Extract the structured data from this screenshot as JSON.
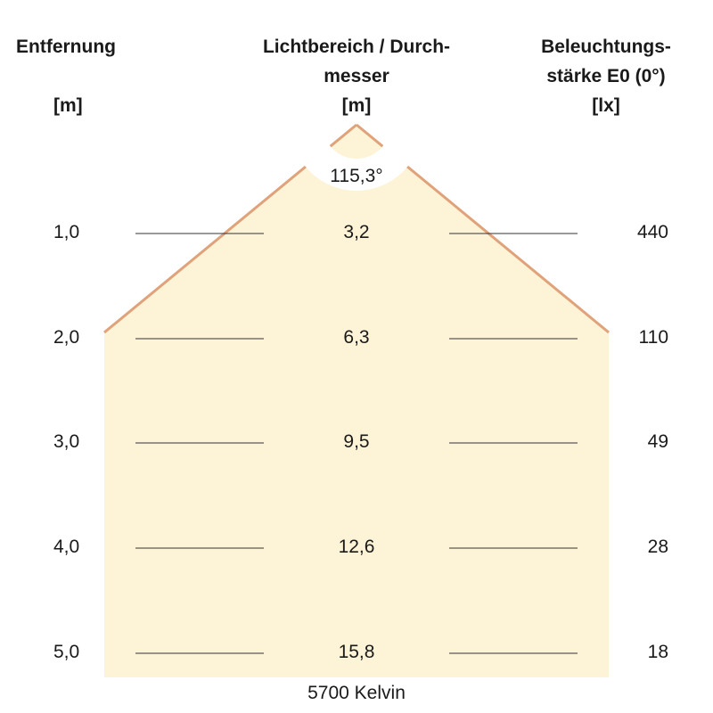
{
  "headers": {
    "distance": {
      "line1": "Entfernung",
      "unit": "[m]"
    },
    "diameter": {
      "line1": "Lichtbereich / Durch-",
      "line2": "messer",
      "unit": "[m]"
    },
    "illuminance": {
      "line1": "Beleuchtungs-",
      "line2": "stärke E0 (0°)",
      "unit": "[lx]"
    }
  },
  "beam_angle": "115,3°",
  "rows": [
    {
      "distance": "1,0",
      "diameter": "3,2",
      "illuminance": "440"
    },
    {
      "distance": "2,0",
      "diameter": "6,3",
      "illuminance": "110"
    },
    {
      "distance": "3,0",
      "diameter": "9,5",
      "illuminance": "49"
    },
    {
      "distance": "4,0",
      "diameter": "12,6",
      "illuminance": "28"
    },
    {
      "distance": "5,0",
      "diameter": "15,8",
      "illuminance": "18"
    }
  ],
  "color_temperature": "5700 Kelvin",
  "colors": {
    "fill": "#fdf3d6",
    "edge": "#e0a27a",
    "line": "#333333"
  }
}
